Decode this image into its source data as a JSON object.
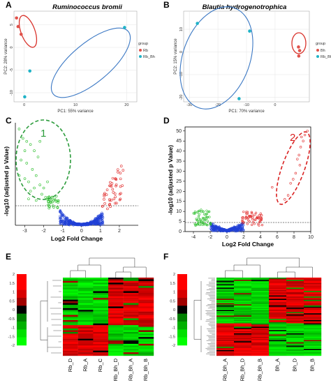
{
  "colors": {
    "red": "#e0524a",
    "cyan": "#1fb3c7",
    "blue_ellipse": "#3b78c4",
    "red_ellipse": "#d9322b",
    "volcano_red": "#e02a2a",
    "volcano_green": "#2fbf2f",
    "volcano_blue": "#1f3fd6",
    "anno_green": "#2c9c3c",
    "anno_red": "#d92020",
    "hm_red": "#ff0000",
    "hm_green": "#00e000"
  },
  "panels": {
    "A": {
      "label": "A",
      "title": "Ruminococcus bromii"
    },
    "B": {
      "label": "B",
      "title": "Blautia hydrogenotrophica"
    },
    "C": {
      "label": "C"
    },
    "D": {
      "label": "D"
    },
    "E": {
      "label": "E"
    },
    "F": {
      "label": "F"
    }
  },
  "chart_data": [
    {
      "id": "A",
      "type": "scatter",
      "title": "Ruminococcus bromii",
      "xlabel": "PC1: 55% variance",
      "ylabel": "PC2: 28% variance",
      "xlim": [
        -2,
        22
      ],
      "ylim": [
        -12,
        8
      ],
      "xticks": [
        0,
        10,
        20
      ],
      "yticks": [
        5,
        0,
        -5,
        -10
      ],
      "legend": {
        "title": "group",
        "entries": [
          "Rb",
          "Rb_Bh"
        ],
        "placement": "right"
      },
      "series": [
        {
          "name": "Rb",
          "points": [
            [
              -1.5,
              6.5
            ],
            [
              -1.2,
              4.6
            ],
            [
              -0.6,
              2.9
            ]
          ]
        },
        {
          "name": "Rb_Bh",
          "points": [
            [
              19.6,
              4.4
            ],
            [
              1.1,
              -5.2
            ],
            [
              0.1,
              -10.9
            ]
          ]
        }
      ],
      "ellipses": [
        "red",
        "blue"
      ]
    },
    {
      "id": "B",
      "type": "scatter",
      "title": "Blautia hydrogenotrophica",
      "xlabel": "PC1: 70% variance",
      "ylabel": "PC2: 15% variance",
      "xlim": [
        -32,
        12
      ],
      "ylim": [
        -22,
        18
      ],
      "xticks": [
        -30,
        -20,
        -10,
        0
      ],
      "yticks": [
        10,
        0,
        -10,
        -20
      ],
      "legend": {
        "title": "group",
        "entries": [
          "Bh",
          "Rb_Bh"
        ],
        "placement": "right"
      },
      "series": [
        {
          "name": "Bh",
          "points": [
            [
              8.2,
              2.2
            ],
            [
              8.6,
              0.6
            ],
            [
              8.3,
              -1.8
            ]
          ]
        },
        {
          "name": "Rb_Bh",
          "points": [
            [
              -27.2,
              12.6
            ],
            [
              -8.9,
              9.2
            ],
            [
              -12.6,
              -20.6
            ]
          ]
        }
      ],
      "ellipses": [
        "red",
        "blue"
      ]
    },
    {
      "id": "C",
      "type": "scatter",
      "subtype": "volcano",
      "xlabel": "Log2 Fold Change",
      "ylabel": "-log10 (adjusted p Value)",
      "xticks": [
        -3,
        -2,
        -1,
        0,
        1,
        2
      ],
      "annotation": "1"
    },
    {
      "id": "D",
      "type": "scatter",
      "subtype": "volcano",
      "xlabel": "Log2 Fold Change",
      "ylabel": "-log10 (adjusted p Value)",
      "xlim": [
        -5,
        10
      ],
      "ylim": [
        0,
        52
      ],
      "xticks": [
        -4,
        -2,
        0,
        2,
        4,
        6,
        8,
        10
      ],
      "yticks": [
        0,
        5,
        10,
        15,
        20,
        25,
        30,
        35,
        40,
        45,
        50
      ],
      "annotation": "2"
    },
    {
      "id": "E",
      "type": "heatmap",
      "columns": [
        "Rb_D",
        "Rb_A",
        "Rb_C",
        "Rb_Bh_D",
        "Rb_Bh_A",
        "Rb_Bh_B"
      ],
      "colorbar": {
        "ticks": [
          "2",
          "1.5",
          "1",
          "0.5",
          "0",
          "-0.5",
          "-1",
          "-1.5",
          "-2"
        ]
      }
    },
    {
      "id": "F",
      "type": "heatmap",
      "columns": [
        "Rb_Bh_A",
        "Rb_Bh_D",
        "Rb_Bh_B",
        "Bh_A",
        "Bh_D",
        "Bh_B"
      ],
      "colorbar": {
        "ticks": [
          "2",
          "1.5",
          "1",
          "0.5",
          "0",
          "-0.5",
          "-1",
          "-1.5",
          "-2"
        ]
      }
    }
  ]
}
